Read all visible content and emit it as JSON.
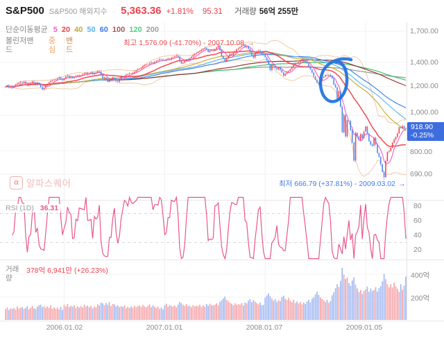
{
  "header": {
    "symbol": "S&P500",
    "name": "S&P500 해외지수",
    "dot": "·",
    "price": "5,363.36",
    "change_pct": "+1.81%",
    "change_val": "95.31",
    "volume_label": "거래량",
    "volume_value": "56억 255만"
  },
  "legend": {
    "ma_title": "단순이동평균",
    "ma_items": [
      {
        "label": "5",
        "color": "#f061c1"
      },
      {
        "label": "20",
        "color": "#f0414b"
      },
      {
        "label": "40",
        "color": "#c7a832"
      },
      {
        "label": "50",
        "color": "#58b5f0"
      },
      {
        "label": "60",
        "color": "#3a7de8"
      },
      {
        "label": "100",
        "color": "#a85555"
      },
      {
        "label": "120",
        "color": "#4fd084"
      },
      {
        "label": "200",
        "color": "#9e9e9e"
      }
    ],
    "bb_title": "볼린저밴드",
    "bb_center": {
      "label": "중심",
      "color": "#f2a05a"
    },
    "bb_band": {
      "label": "밴드",
      "color": "#cf8a52"
    }
  },
  "annotations": {
    "high": {
      "text": "최고 1,576.09 (-41.70%) - 2007.10.08",
      "arrow": "→",
      "color": "#f0474f"
    },
    "low": {
      "text": "최저 666.79 (+37.81%) - 2009.03.02",
      "arrow": "→",
      "color": "#3f7af0"
    }
  },
  "watermark": {
    "logo": "α",
    "text": "알파스퀘어"
  },
  "price_axis": {
    "ticks": [
      "1,700.00",
      "1,400.00",
      "1,200.00",
      "1,000.00",
      "800.00",
      "690.00"
    ],
    "badge": {
      "price": "918.90",
      "pct": "-0.25%",
      "bg": "#3e6de0"
    }
  },
  "rsi_panel": {
    "label": "RSI",
    "param": "(1D)",
    "value": "36.31",
    "ticks": [
      "80",
      "60",
      "40",
      "20"
    ]
  },
  "volume_panel": {
    "label": "거래량",
    "value": "378억 6,941만 (+26.23%)",
    "ticks": [
      "400억",
      "200억"
    ]
  },
  "x_axis": {
    "labels": [
      "2006.01.02",
      "2007.01.01",
      "2008.01.07",
      "2009.01.05"
    ]
  },
  "chart_data": {
    "type": "candlestick",
    "title": "S&P500 weekly chart 2005-2009 with SMA(5,20,40,50,60,100,120,200), Bollinger bands, RSI and volume",
    "y_scale": "log",
    "y_ticks": [
      1700,
      1400,
      1200,
      1000,
      800,
      690
    ],
    "x_ticks": [
      {
        "idx": 35,
        "label": "2006.01.02"
      },
      {
        "idx": 95,
        "label": "2007.01.01"
      },
      {
        "idx": 155,
        "label": "2008.01.07"
      },
      {
        "idx": 215,
        "label": "2009.01.05"
      }
    ],
    "last": {
      "price": 918.9,
      "change_pct": -0.25
    },
    "high_point": {
      "idx": 142,
      "price": 1576.09,
      "date": "2007.10.08",
      "pct_from_current": -41.7
    },
    "low_point": {
      "idx": 226,
      "price": 666.79,
      "date": "2009.03.02",
      "pct_from_current": 37.81
    },
    "closes": [
      1198,
      1206,
      1194,
      1200,
      1191,
      1202,
      1212,
      1220,
      1228,
      1234,
      1230,
      1236,
      1222,
      1210,
      1220,
      1228,
      1238,
      1231,
      1215,
      1228,
      1216,
      1196,
      1178,
      1190,
      1207,
      1220,
      1232,
      1242,
      1248,
      1249,
      1255,
      1262,
      1270,
      1258,
      1248,
      1262,
      1278,
      1285,
      1270,
      1280,
      1264,
      1272,
      1280,
      1288,
      1281,
      1288,
      1295,
      1302,
      1308,
      1295,
      1302,
      1310,
      1296,
      1308,
      1311,
      1322,
      1316,
      1292,
      1262,
      1270,
      1256,
      1236,
      1248,
      1256,
      1270,
      1260,
      1242,
      1236,
      1258,
      1277,
      1270,
      1280,
      1292,
      1298,
      1304,
      1300,
      1308,
      1318,
      1328,
      1336,
      1342,
      1350,
      1364,
      1374,
      1378,
      1380,
      1388,
      1396,
      1390,
      1401,
      1410,
      1416,
      1425,
      1422,
      1418,
      1412,
      1422,
      1430,
      1426,
      1438,
      1444,
      1452,
      1458,
      1448,
      1407,
      1386,
      1394,
      1410,
      1422,
      1421,
      1436,
      1448,
      1462,
      1476,
      1482,
      1494,
      1502,
      1512,
      1522,
      1531,
      1518,
      1492,
      1504,
      1512,
      1503,
      1520,
      1534,
      1552,
      1510,
      1455,
      1432,
      1406,
      1432,
      1452,
      1474,
      1462,
      1484,
      1496,
      1518,
      1527,
      1540,
      1552,
      1565,
      1540,
      1549,
      1520,
      1490,
      1462,
      1440,
      1481,
      1498,
      1506,
      1488,
      1472,
      1468,
      1442,
      1416,
      1380,
      1330,
      1378,
      1366,
      1348,
      1336,
      1352,
      1331,
      1310,
      1284,
      1300,
      1316,
      1323,
      1338,
      1356,
      1372,
      1388,
      1386,
      1398,
      1408,
      1424,
      1408,
      1400,
      1388,
      1360,
      1336,
      1310,
      1280,
      1252,
      1228,
      1216,
      1248,
      1267,
      1276,
      1290,
      1284,
      1292,
      1283,
      1262,
      1214,
      1194,
      1106,
      1166,
      1056,
      899,
      1003,
      876,
      969,
      966,
      910,
      843,
      752,
      896,
      876,
      856,
      888,
      868,
      903,
      932,
      890,
      850,
      832,
      826,
      869,
      832,
      789,
      770,
      735,
      700,
      677,
      750,
      794,
      798,
      815,
      842,
      858,
      873,
      892,
      929,
      923,
      935,
      921.2,
      918.9
    ],
    "volumes_eok": [
      95,
      110,
      88,
      102,
      97,
      105,
      92,
      118,
      99,
      108,
      112,
      96,
      104,
      121,
      93,
      108,
      122,
      101,
      96,
      115,
      128,
      134,
      112,
      120,
      106,
      118,
      104,
      126,
      98,
      110,
      96,
      108,
      92,
      114,
      88,
      132,
      118,
      140,
      112,
      124,
      116,
      128,
      104,
      120,
      108,
      122,
      110,
      134,
      116,
      126,
      112,
      124,
      102,
      118,
      110,
      138,
      126,
      152,
      144,
      128,
      148,
      132,
      156,
      122,
      140,
      136,
      118,
      128,
      112,
      120,
      114,
      126,
      102,
      116,
      104,
      118,
      108,
      124,
      112,
      120,
      126,
      114,
      132,
      118,
      110,
      122,
      134,
      112,
      126,
      116,
      104,
      118,
      96,
      110,
      92,
      128,
      142,
      116,
      130,
      122,
      118,
      126,
      110,
      134,
      158,
      146,
      132,
      124,
      138,
      120,
      126,
      112,
      130,
      118,
      124,
      120,
      132,
      114,
      128,
      116,
      138,
      124,
      142,
      130,
      126,
      134,
      146,
      128,
      158,
      172,
      188,
      204,
      176,
      162,
      150,
      142,
      128,
      146,
      132,
      138,
      134,
      148,
      126,
      152,
      144,
      168,
      182,
      156,
      174,
      160,
      148,
      136,
      152,
      128,
      132,
      196,
      214,
      232,
      208,
      186,
      168,
      182,
      158,
      172,
      164,
      198,
      212,
      186,
      174,
      192,
      168,
      154,
      176,
      148,
      162,
      144,
      158,
      136,
      152,
      140,
      162,
      178,
      154,
      186,
      198,
      224,
      248,
      218,
      196,
      184,
      172,
      158,
      176,
      150,
      164,
      216,
      242,
      278,
      312,
      288,
      342,
      455,
      396,
      358,
      372,
      322,
      298,
      344,
      372,
      308,
      276,
      244,
      262,
      228,
      252,
      268,
      292,
      246,
      274,
      254,
      262,
      286,
      248,
      278,
      296,
      338,
      402,
      356,
      312,
      286,
      312,
      284,
      326,
      294,
      272,
      246,
      312,
      264,
      300,
      379
    ],
    "ma_defs": [
      {
        "period": 5,
        "color": "#f061c1"
      },
      {
        "period": 20,
        "color": "#f0414b"
      },
      {
        "period": 40,
        "color": "#c7a832"
      },
      {
        "period": 50,
        "color": "#58b5f0"
      },
      {
        "period": 60,
        "color": "#3a7de8"
      },
      {
        "period": 100,
        "color": "#962c2c"
      },
      {
        "period": 120,
        "color": "#2fc162"
      },
      {
        "period": 200,
        "color": "#8f8f8f"
      }
    ],
    "bollinger": {
      "period": 20,
      "mult": 2,
      "center_color": "#f2a05a",
      "band_color": "#eecba6"
    },
    "rsi": {
      "value": 36.31,
      "color": "#e9558c",
      "ticks": [
        80,
        60,
        40,
        20
      ],
      "dashed_levels": [
        70,
        30
      ]
    },
    "volume": {
      "up_color": "#f4a0a5",
      "down_color": "#9eb5f1",
      "ticks": [
        {
          "v": 400,
          "label": "400억"
        },
        {
          "v": 200,
          "label": "200억"
        }
      ]
    },
    "candle": {
      "up_color": "#f04452",
      "down_color": "#4f86f2"
    },
    "annotation_circle": {
      "color": "#1e72dd"
    }
  }
}
